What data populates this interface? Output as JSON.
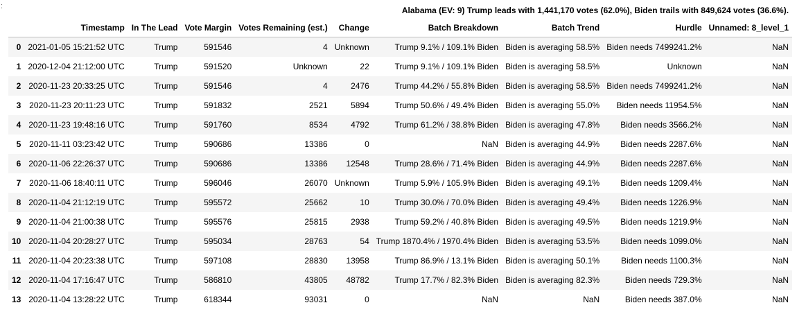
{
  "prompt_marker": ":",
  "caption": "Alabama (EV: 9) Trump leads with 1,441,170 votes (62.0%), Biden trails with 849,624 votes (36.6%).",
  "columns": [
    "Timestamp",
    "In The Lead",
    "Vote Margin",
    "Votes Remaining (est.)",
    "Change",
    "Batch Breakdown",
    "Batch Trend",
    "Hurdle",
    "Unnamed: 8_level_1"
  ],
  "rows": [
    {
      "index": "0",
      "cells": [
        "2021-01-05 15:21:52 UTC",
        "Trump",
        "591546",
        "4",
        "Unknown",
        "Trump 9.1% / 109.1% Biden",
        "Biden is averaging 58.5%",
        "Biden needs 7499241.2%",
        "NaN"
      ]
    },
    {
      "index": "1",
      "cells": [
        "2020-12-04 21:12:00 UTC",
        "Trump",
        "591520",
        "Unknown",
        "22",
        "Trump 9.1% / 109.1% Biden",
        "Biden is averaging 58.5%",
        "Unknown",
        "NaN"
      ]
    },
    {
      "index": "2",
      "cells": [
        "2020-11-23 20:33:25 UTC",
        "Trump",
        "591546",
        "4",
        "2476",
        "Trump 44.2% / 55.8% Biden",
        "Biden is averaging 58.5%",
        "Biden needs 7499241.2%",
        "NaN"
      ]
    },
    {
      "index": "3",
      "cells": [
        "2020-11-23 20:11:23 UTC",
        "Trump",
        "591832",
        "2521",
        "5894",
        "Trump 50.6% / 49.4% Biden",
        "Biden is averaging 55.0%",
        "Biden needs 11954.5%",
        "NaN"
      ]
    },
    {
      "index": "4",
      "cells": [
        "2020-11-23 19:48:16 UTC",
        "Trump",
        "591760",
        "8534",
        "4792",
        "Trump 61.2% / 38.8% Biden",
        "Biden is averaging 47.8%",
        "Biden needs 3566.2%",
        "NaN"
      ]
    },
    {
      "index": "5",
      "cells": [
        "2020-11-11 03:23:42 UTC",
        "Trump",
        "590686",
        "13386",
        "0",
        "NaN",
        "Biden is averaging 44.9%",
        "Biden needs 2287.6%",
        "NaN"
      ]
    },
    {
      "index": "6",
      "cells": [
        "2020-11-06 22:26:37 UTC",
        "Trump",
        "590686",
        "13386",
        "12548",
        "Trump 28.6% / 71.4% Biden",
        "Biden is averaging 44.9%",
        "Biden needs 2287.6%",
        "NaN"
      ]
    },
    {
      "index": "7",
      "cells": [
        "2020-11-06 18:40:11 UTC",
        "Trump",
        "596046",
        "26070",
        "Unknown",
        "Trump 5.9% / 105.9% Biden",
        "Biden is averaging 49.1%",
        "Biden needs 1209.4%",
        "NaN"
      ]
    },
    {
      "index": "8",
      "cells": [
        "2020-11-04 21:12:19 UTC",
        "Trump",
        "595572",
        "25662",
        "10",
        "Trump 30.0% / 70.0% Biden",
        "Biden is averaging 49.4%",
        "Biden needs 1226.9%",
        "NaN"
      ]
    },
    {
      "index": "9",
      "cells": [
        "2020-11-04 21:00:38 UTC",
        "Trump",
        "595576",
        "25815",
        "2938",
        "Trump 59.2% / 40.8% Biden",
        "Biden is averaging 49.5%",
        "Biden needs 1219.9%",
        "NaN"
      ]
    },
    {
      "index": "10",
      "cells": [
        "2020-11-04 20:28:27 UTC",
        "Trump",
        "595034",
        "28763",
        "54",
        "Trump 1870.4% / 1970.4% Biden",
        "Biden is averaging 53.5%",
        "Biden needs 1099.0%",
        "NaN"
      ]
    },
    {
      "index": "11",
      "cells": [
        "2020-11-04 20:23:38 UTC",
        "Trump",
        "597108",
        "28830",
        "13958",
        "Trump 86.9% / 13.1% Biden",
        "Biden is averaging 50.1%",
        "Biden needs 1100.3%",
        "NaN"
      ]
    },
    {
      "index": "12",
      "cells": [
        "2020-11-04 17:16:47 UTC",
        "Trump",
        "586810",
        "43805",
        "48782",
        "Trump 17.7% / 82.3% Biden",
        "Biden is averaging 82.3%",
        "Biden needs 729.3%",
        "NaN"
      ]
    },
    {
      "index": "13",
      "cells": [
        "2020-11-04 13:28:22 UTC",
        "Trump",
        "618344",
        "93031",
        "0",
        "NaN",
        "NaN",
        "Biden needs 387.0%",
        "NaN"
      ]
    }
  ]
}
